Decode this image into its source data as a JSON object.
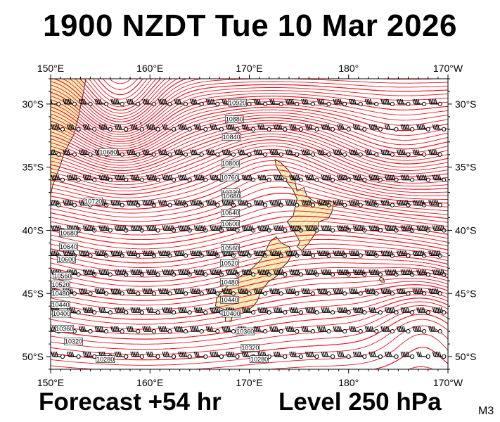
{
  "header": {
    "title": "1900 NZDT Tue 10 Mar 2026"
  },
  "footer": {
    "forecast": "Forecast +54 hr",
    "level": "Level 250 hPa",
    "model_code": "M3"
  },
  "map": {
    "projection": "equirectangular",
    "lon_range": [
      150,
      190
    ],
    "lat_range": [
      -51,
      -28
    ],
    "lon_ticks": [
      {
        "lon": 150,
        "label": "150°E"
      },
      {
        "lon": 160,
        "label": "160°E"
      },
      {
        "lon": 170,
        "label": "170°E"
      },
      {
        "lon": 180,
        "label": "180°"
      },
      {
        "lon": 190,
        "label": "170°W"
      }
    ],
    "lat_ticks": [
      {
        "lat": -30,
        "label": "30°S"
      },
      {
        "lat": -35,
        "label": "35°S"
      },
      {
        "lat": -40,
        "label": "40°S"
      },
      {
        "lat": -45,
        "label": "45°S"
      },
      {
        "lat": -50,
        "label": "50°S"
      }
    ],
    "contour_color": "#e8141e",
    "contour_interval_m": 40,
    "land_fill_color": "#f7efc0",
    "wind_barb_color": "#000000",
    "contour_labels": [
      {
        "text": "10920",
        "lon": 168.8,
        "lat": -29.9
      },
      {
        "text": "10880",
        "lon": 168.5,
        "lat": -31.2
      },
      {
        "text": "10840",
        "lon": 168.2,
        "lat": -32.6
      },
      {
        "text": "10800",
        "lon": 168.1,
        "lat": -34.7
      },
      {
        "text": "10760",
        "lon": 168.0,
        "lat": -35.8
      },
      {
        "text": "10720",
        "lon": 168.1,
        "lat": -37.0
      },
      {
        "text": "10680",
        "lon": 168.2,
        "lat": -37.3
      },
      {
        "text": "10640",
        "lon": 168.1,
        "lat": -38.6
      },
      {
        "text": "10600",
        "lon": 168.1,
        "lat": -39.5
      },
      {
        "text": "10560",
        "lon": 168.1,
        "lat": -41.4
      },
      {
        "text": "10520",
        "lon": 168.0,
        "lat": -42.6
      },
      {
        "text": "10480",
        "lon": 168.0,
        "lat": -44.1
      },
      {
        "text": "10440",
        "lon": 168.0,
        "lat": -45.5
      },
      {
        "text": "10400",
        "lon": 168.2,
        "lat": -46.6
      },
      {
        "text": "10360",
        "lon": 169.6,
        "lat": -48.0
      },
      {
        "text": "10320",
        "lon": 170.1,
        "lat": -49.3
      },
      {
        "text": "10280",
        "lon": 171.0,
        "lat": -50.2
      },
      {
        "text": "10680",
        "lon": 155.8,
        "lat": -33.8
      },
      {
        "text": "10720",
        "lon": 154.3,
        "lat": -37.7
      },
      {
        "text": "10680",
        "lon": 151.8,
        "lat": -40.2
      },
      {
        "text": "10640",
        "lon": 151.8,
        "lat": -41.3
      },
      {
        "text": "10600",
        "lon": 151.6,
        "lat": -42.3
      },
      {
        "text": "10560",
        "lon": 151.2,
        "lat": -43.6
      },
      {
        "text": "10520",
        "lon": 151.0,
        "lat": -44.3
      },
      {
        "text": "10480",
        "lon": 151.0,
        "lat": -45.0
      },
      {
        "text": "10440",
        "lon": 151.0,
        "lat": -45.9
      },
      {
        "text": "10400",
        "lon": 151.1,
        "lat": -46.6
      },
      {
        "text": "10360",
        "lon": 151.4,
        "lat": -47.8
      },
      {
        "text": "10320",
        "lon": 152.3,
        "lat": -48.8
      },
      {
        "text": "10280",
        "lon": 155.5,
        "lat": -50.2
      }
    ]
  }
}
